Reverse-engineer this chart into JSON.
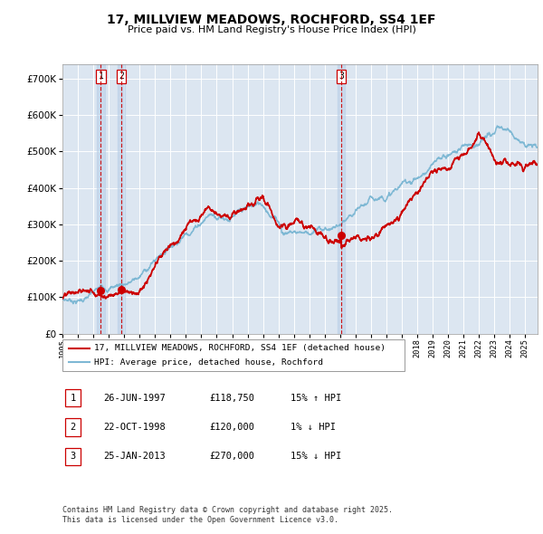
{
  "title_line1": "17, MILLVIEW MEADOWS, ROCHFORD, SS4 1EF",
  "title_line2": "Price paid vs. HM Land Registry's House Price Index (HPI)",
  "ylabel_values": [
    0,
    100000,
    200000,
    300000,
    400000,
    500000,
    600000,
    700000
  ],
  "ylabel_labels": [
    "£0",
    "£100K",
    "£200K",
    "£300K",
    "£400K",
    "£500K",
    "£600K",
    "£700K"
  ],
  "ylim": [
    0,
    740000
  ],
  "xlim_start": 1995.0,
  "xlim_end": 2025.8,
  "plot_bg_color": "#dce6f1",
  "grid_color": "#ffffff",
  "red_line_color": "#cc0000",
  "blue_line_color": "#7eb8d4",
  "vline_color": "#cc0000",
  "span_color": "#b8cfe8",
  "transactions": [
    {
      "date_num": 1997.49,
      "price": 118750,
      "label": "1",
      "date_str": "26-JUN-1997",
      "hpi_pct": "15%",
      "hpi_dir": "↑"
    },
    {
      "date_num": 1998.81,
      "price": 120000,
      "label": "2",
      "date_str": "22-OCT-1998",
      "hpi_pct": "1%",
      "hpi_dir": "↓"
    },
    {
      "date_num": 2013.07,
      "price": 270000,
      "label": "3",
      "date_str": "25-JAN-2013",
      "hpi_pct": "15%",
      "hpi_dir": "↓"
    }
  ],
  "legend_red_label": "17, MILLVIEW MEADOWS, ROCHFORD, SS4 1EF (detached house)",
  "legend_blue_label": "HPI: Average price, detached house, Rochford",
  "table_rows": [
    {
      "label": "1",
      "date": "26-JUN-1997",
      "price": "£118,750",
      "hpi": "15% ↑ HPI"
    },
    {
      "label": "2",
      "date": "22-OCT-1998",
      "price": "£120,000",
      "hpi": "1% ↓ HPI"
    },
    {
      "label": "3",
      "date": "25-JAN-2013",
      "price": "£270,000",
      "hpi": "15% ↓ HPI"
    }
  ],
  "footnote_line1": "Contains HM Land Registry data © Crown copyright and database right 2025.",
  "footnote_line2": "This data is licensed under the Open Government Licence v3.0."
}
